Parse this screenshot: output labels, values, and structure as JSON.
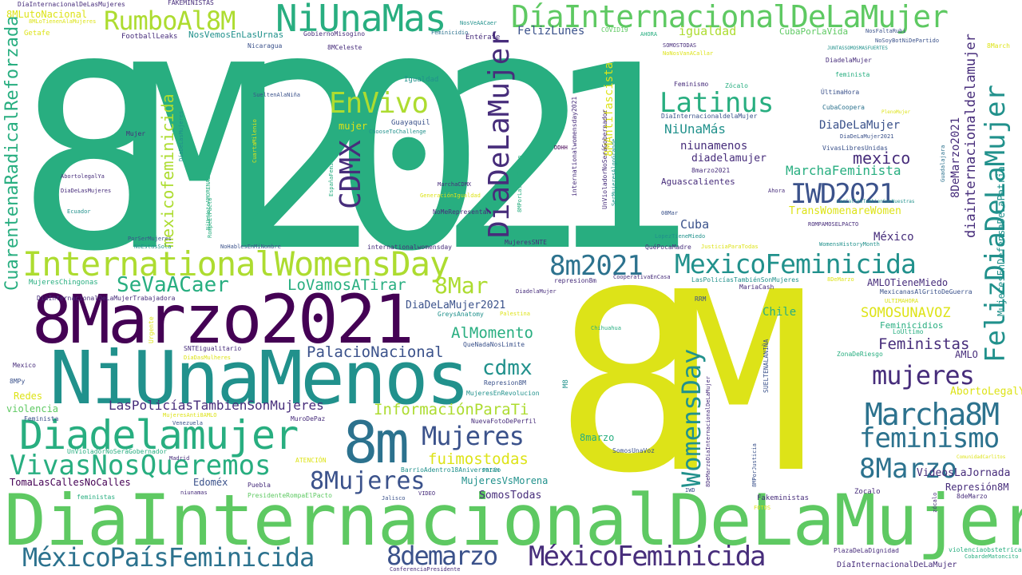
{
  "palette": {
    "purple": "#440154",
    "indigo": "#472d7b",
    "blue": "#3b528b",
    "slate": "#2c728e",
    "teal": "#21918c",
    "seagreen": "#28ae80",
    "green": "#5ec962",
    "lime": "#addc30",
    "yellow": "#dde318"
  },
  "words": [
    {
      "text": "8M2021",
      "color": "seagreen"
    },
    {
      "text": "8M",
      "color": "yellow"
    },
    {
      "text": "DiaInternacionalDeLaMujer",
      "color": "green"
    },
    {
      "text": "NiUnaMenos",
      "color": "teal"
    },
    {
      "text": "8Marzo2021",
      "color": "purple"
    },
    {
      "text": "InternationalWomensDay",
      "color": "lime"
    },
    {
      "text": "Diadelamujer",
      "color": "seagreen"
    },
    {
      "text": "8m",
      "color": "slate"
    },
    {
      "text": "NiUnaMas",
      "color": "seagreen"
    },
    {
      "text": "DíaInternacionalDeLaMujer",
      "color": "green"
    },
    {
      "text": "RumboAl8M",
      "color": "lime"
    },
    {
      "text": "DíaDeLaMujer",
      "color": "indigo"
    },
    {
      "text": "FelizDiaDeLaMujer",
      "color": "teal"
    },
    {
      "text": "VivasNosQueremos",
      "color": "seagreen"
    },
    {
      "text": "MéxicoPaísFeminicida",
      "color": "slate"
    },
    {
      "text": "MéxicoFeminicida",
      "color": "indigo"
    },
    {
      "text": "MexicoFeminicida",
      "color": "teal"
    },
    {
      "text": "Marcha8M",
      "color": "slate"
    },
    {
      "text": "IWD2021",
      "color": "blue"
    },
    {
      "text": "EnVivo",
      "color": "lime"
    },
    {
      "text": "Latinus",
      "color": "seagreen"
    },
    {
      "text": "mujeres",
      "color": "indigo"
    },
    {
      "text": "Mujeres",
      "color": "blue"
    },
    {
      "text": "8Mujeres",
      "color": "blue"
    },
    {
      "text": "feminismo",
      "color": "slate"
    },
    {
      "text": "8Marzo",
      "color": "slate"
    },
    {
      "text": "8m2021",
      "color": "slate"
    },
    {
      "text": "CDMX",
      "color": "indigo"
    },
    {
      "text": "8demarzo",
      "color": "blue"
    },
    {
      "text": "WomensDay",
      "color": "teal"
    },
    {
      "text": "CuarentenaRadicalReforzada",
      "color": "seagreen"
    },
    {
      "text": "mexicofeminicida",
      "color": "lime"
    },
    {
      "text": "SeVaACaer",
      "color": "seagreen"
    },
    {
      "text": "8Mar",
      "color": "lime"
    },
    {
      "text": "cdmx",
      "color": "teal"
    },
    {
      "text": "MujeresEnDefensaDeLaPatria",
      "color": "teal"
    },
    {
      "text": "diainternacionaldelamujer",
      "color": "indigo"
    },
    {
      "text": "8DeMarzo2021",
      "color": "indigo"
    },
    {
      "text": "8MAntifascista",
      "color": "yellow"
    },
    {
      "text": "LoVamosATirar",
      "color": "seagreen"
    },
    {
      "text": "PalacioNacional",
      "color": "blue"
    },
    {
      "text": "AlMomento",
      "color": "seagreen"
    },
    {
      "text": "InformaciónParaTi",
      "color": "lime"
    },
    {
      "text": "LasPolicíasTambienSonMujeres",
      "color": "indigo"
    },
    {
      "text": "fuimostodas",
      "color": "yellow"
    },
    {
      "text": "SOMOSUNAVOZ",
      "color": "yellow"
    },
    {
      "text": "Feministas",
      "color": "indigo"
    },
    {
      "text": "MarchaFeminista",
      "color": "seagreen"
    },
    {
      "text": "mexico",
      "color": "indigo"
    },
    {
      "text": "NiUnaMás",
      "color": "teal"
    },
    {
      "text": "DiaDeLaMujer",
      "color": "blue"
    },
    {
      "text": "niunamenos",
      "color": "indigo"
    },
    {
      "text": "diadelamujer",
      "color": "indigo"
    },
    {
      "text": "igualdad",
      "color": "lime"
    },
    {
      "text": "FelizLunes",
      "color": "blue"
    },
    {
      "text": "8MLutoNacional",
      "color": "yellow"
    },
    {
      "text": "NosVemosEnLasUrnas",
      "color": "teal"
    },
    {
      "text": "DiaDeLaMujer2021",
      "color": "blue"
    },
    {
      "text": "CubaPorLaVida",
      "color": "green"
    },
    {
      "text": "Cuba",
      "color": "blue"
    },
    {
      "text": "México",
      "color": "indigo"
    },
    {
      "text": "Chile",
      "color": "seagreen"
    },
    {
      "text": "AMLOTieneMiedo",
      "color": "indigo"
    },
    {
      "text": "TransWomenareWomen",
      "color": "yellow"
    },
    {
      "text": "AbortoLegalYa",
      "color": "yellow"
    },
    {
      "text": "VideosLaJornada",
      "color": "indigo"
    },
    {
      "text": "Represión8M",
      "color": "indigo"
    },
    {
      "text": "MujeresVsMorena",
      "color": "teal"
    },
    {
      "text": "SomosTodas",
      "color": "indigo"
    },
    {
      "text": "8marzo",
      "color": "seagreen"
    },
    {
      "text": "Edoméx",
      "color": "blue"
    },
    {
      "text": "TomaLasCallesNoCalles",
      "color": "purple"
    },
    {
      "text": "violencia",
      "color": "green"
    },
    {
      "text": "Redes",
      "color": "yellow"
    },
    {
      "text": "mujer",
      "color": "yellow"
    },
    {
      "text": "AMLO",
      "color": "indigo"
    },
    {
      "text": "Feminicidios",
      "color": "seagreen"
    },
    {
      "text": "Aguascalientes",
      "color": "indigo"
    },
    {
      "text": "Guayaquil",
      "color": "blue"
    },
    {
      "text": "Igualdad",
      "color": "teal"
    },
    {
      "text": "Mujer",
      "color": "indigo"
    },
    {
      "text": "FootballLeaks",
      "color": "indigo"
    },
    {
      "text": "Getafe",
      "color": "yellow"
    },
    {
      "text": "FAKEMINISTAS",
      "color": "indigo"
    },
    {
      "text": "DíaInternacionalDeLasMujeres",
      "color": "indigo"
    },
    {
      "text": "8MLoTienenAlaMujeres",
      "color": "yellow"
    },
    {
      "text": "GobiernoMisogino",
      "color": "indigo"
    },
    {
      "text": "8MCeleste",
      "color": "indigo"
    },
    {
      "text": "Nicaragua",
      "color": "blue"
    },
    {
      "text": "SueltenAlaNiña",
      "color": "blue"
    },
    {
      "text": "NosVeAACaer",
      "color": "teal"
    },
    {
      "text": "Feminicidio",
      "color": "slate"
    },
    {
      "text": "Entérate",
      "color": "indigo"
    },
    {
      "text": "COVID19",
      "color": "green"
    },
    {
      "text": "AHORA",
      "color": "seagreen"
    },
    {
      "text": "SOMOSTODAS",
      "color": "indigo"
    },
    {
      "text": "NoNosVanACallar",
      "color": "yellow"
    },
    {
      "text": "NoSoyBotNiDePartido",
      "color": "blue"
    },
    {
      "text": "NosFaltaRubi",
      "color": "blue"
    },
    {
      "text": "JUNTASSOMOSMASFUERTES",
      "color": "teal"
    },
    {
      "text": "DiadelaMujer",
      "color": "indigo"
    },
    {
      "text": "feminista",
      "color": "seagreen"
    },
    {
      "text": "ÚltimaHora",
      "color": "blue"
    },
    {
      "text": "Feminismo",
      "color": "indigo"
    },
    {
      "text": "Zócalo",
      "color": "seagreen"
    },
    {
      "text": "CubaCoopera",
      "color": "slate"
    },
    {
      "text": "PlenoMujer",
      "color": "yellow"
    },
    {
      "text": "DiaInternacionaldelaMujer",
      "color": "blue"
    },
    {
      "text": "8March",
      "color": "yellow"
    },
    {
      "text": "DiaDeLaMujer2021",
      "color": "blue"
    },
    {
      "text": "VivasLibresUnidas",
      "color": "blue"
    },
    {
      "text": "LasCallesTambienSonNuestras",
      "color": "teal"
    },
    {
      "text": "Guadalajara",
      "color": "slate"
    },
    {
      "text": "Ahora",
      "color": "indigo"
    },
    {
      "text": "ROMPAMOSELPACTO",
      "color": "indigo"
    },
    {
      "text": "08Mar",
      "color": "blue"
    },
    {
      "text": "LopezTieneMiedo",
      "color": "teal"
    },
    {
      "text": "QuéPocaMadre",
      "color": "indigo"
    },
    {
      "text": "JusticiaParaTodas",
      "color": "yellow"
    },
    {
      "text": "WomensHistoryMonth",
      "color": "teal"
    },
    {
      "text": "MujeresSNTE",
      "color": "indigo"
    },
    {
      "text": "internationalwomensday",
      "color": "indigo"
    },
    {
      "text": "NoHablesEnMiNombre",
      "color": "blue"
    },
    {
      "text": "NoEstasSola",
      "color": "teal"
    },
    {
      "text": "PorSerMujeres",
      "color": "blue"
    },
    {
      "text": "MujeresChingonas",
      "color": "seagreen"
    },
    {
      "text": "DiaInternacionalDeLaMujerTrabajadora",
      "color": "indigo"
    },
    {
      "text": "DiadelaMujer",
      "color": "indigo"
    },
    {
      "text": "CooperativaEnCasa",
      "color": "indigo"
    },
    {
      "text": "represion8m",
      "color": "indigo"
    },
    {
      "text": "LasPolicíasTambiénSonMujeres",
      "color": "teal"
    },
    {
      "text": "8DeMarzo",
      "color": "yellow"
    },
    {
      "text": "MariaCash",
      "color": "indigo"
    },
    {
      "text": "MexicanasAlGritoDeGuerra",
      "color": "blue"
    },
    {
      "text": "ULTIMAHORA",
      "color": "yellow"
    },
    {
      "text": "RRM",
      "color": "blue"
    },
    {
      "text": "GreysAnatomy",
      "color": "teal"
    },
    {
      "text": "Palestina",
      "color": "yellow"
    },
    {
      "text": "QueNadaNosLimite",
      "color": "blue"
    },
    {
      "text": "Chihuahua",
      "color": "seagreen"
    },
    {
      "text": "SNTEigualitario",
      "color": "indigo"
    },
    {
      "text": "Urgente",
      "color": "yellow"
    },
    {
      "text": "DíaDasMulheres",
      "color": "yellow"
    },
    {
      "text": "Represion8M",
      "color": "blue"
    },
    {
      "text": "MujeresEnRevolucion",
      "color": "teal"
    },
    {
      "text": "LoÚltimo",
      "color": "seagreen"
    },
    {
      "text": "ZonaDeRiesgo",
      "color": "seagreen"
    },
    {
      "text": "SUELTENALANIÑA",
      "color": "blue"
    },
    {
      "text": "Mexico",
      "color": "indigo"
    },
    {
      "text": "8MPy",
      "color": "blue"
    },
    {
      "text": "Feminista",
      "color": "blue"
    },
    {
      "text": "MujeresAnti8AMLO",
      "color": "yellow"
    },
    {
      "text": "Venezuela",
      "color": "blue"
    },
    {
      "text": "MuroDePaz",
      "color": "indigo"
    },
    {
      "text": "UnVioladorNoSeráGobernador",
      "color": "seagreen"
    },
    {
      "text": "NuevaFotoDePerfil",
      "color": "indigo"
    },
    {
      "text": "Madrid",
      "color": "indigo"
    },
    {
      "text": "ATENCIÓN",
      "color": "yellow"
    },
    {
      "text": "PRIAN",
      "color": "teal"
    },
    {
      "text": "BarrioAdentro18Aniversario",
      "color": "teal"
    },
    {
      "text": "SomosUnaVoz",
      "color": "blue"
    },
    {
      "text": "8DeMarzoDiaInternacionalDeLaMujer",
      "color": "indigo"
    },
    {
      "text": "8MPorJusticia",
      "color": "blue"
    },
    {
      "text": "ComunidadCarlitos",
      "color": "yellow"
    },
    {
      "text": "Puebla",
      "color": "indigo"
    },
    {
      "text": "niunamas",
      "color": "indigo"
    },
    {
      "text": "PresidenteRompaElPacto",
      "color": "green"
    },
    {
      "text": "Jalisco",
      "color": "blue"
    },
    {
      "text": "VIDEO",
      "color": "indigo"
    },
    {
      "text": "IWD",
      "color": "blue"
    },
    {
      "text": "Fakeministas",
      "color": "indigo"
    },
    {
      "text": "Zocalo",
      "color": "indigo"
    },
    {
      "text": "8deMarzo",
      "color": "indigo"
    },
    {
      "text": "feministas",
      "color": "seagreen"
    },
    {
      "text": "zócalo",
      "color": "indigo"
    },
    {
      "text": "FOTOS",
      "color": "yellow"
    },
    {
      "text": "PlazaDeLaDignidad",
      "color": "indigo"
    },
    {
      "text": "violenciaobstetrica",
      "color": "seagreen"
    },
    {
      "text": "CobardeMatoncito",
      "color": "seagreen"
    },
    {
      "text": "ConferenciaPresidente",
      "color": "indigo"
    },
    {
      "text": "DíaInternacionalDeLaMujer",
      "color": "indigo"
    },
    {
      "text": "NoMeRepresentan",
      "color": "indigo"
    },
    {
      "text": "MarchaCDMX",
      "color": "indigo"
    },
    {
      "text": "GeneraciónIgualdad",
      "color": "yellow"
    },
    {
      "text": "8MPorLasQueCuidan",
      "color": "seagreen"
    },
    {
      "text": "EspañaFeminista",
      "color": "seagreen"
    },
    {
      "text": "NiUnVotoAMORENA2021",
      "color": "seagreen"
    },
    {
      "text": "RompeElPacto",
      "color": "seagreen"
    },
    {
      "text": "ChooseToChallenge",
      "color": "teal"
    },
    {
      "text": "DíaDeLasMujeres",
      "color": "teal"
    },
    {
      "text": "CuartaMilenio",
      "color": "yellow"
    },
    {
      "text": "AbortolegalYa",
      "color": "indigo"
    },
    {
      "text": "DiaDeLasMujeres",
      "color": "indigo"
    },
    {
      "text": "Ecuador",
      "color": "teal"
    },
    {
      "text": "internationalwomensday2021",
      "color": "indigo"
    },
    {
      "text": "UnVioladorNoSeráGobernador",
      "color": "indigo"
    },
    {
      "text": "SerMujeresAlgoGrande",
      "color": "teal"
    },
    {
      "text": "DDHH",
      "color": "purple"
    },
    {
      "text": "8marzo2021",
      "color": "indigo"
    },
    {
      "text": "M8",
      "color": "teal"
    }
  ]
}
